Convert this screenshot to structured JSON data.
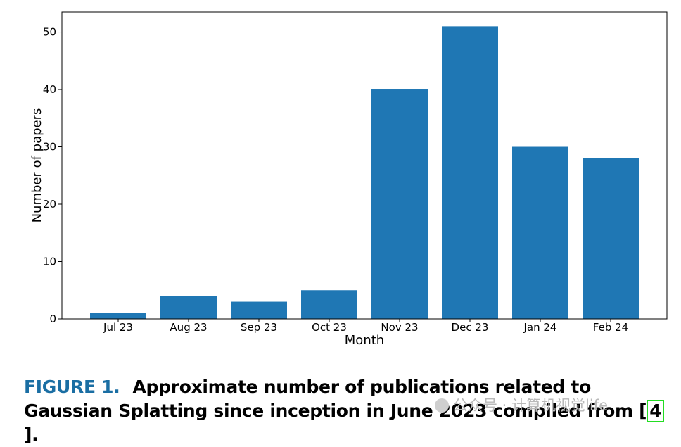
{
  "chart_data": {
    "type": "bar",
    "categories": [
      "Jul 23",
      "Aug 23",
      "Sep 23",
      "Oct 23",
      "Nov 23",
      "Dec 23",
      "Jan 24",
      "Feb 24"
    ],
    "values": [
      1,
      4,
      3,
      5,
      40,
      51,
      30,
      28
    ],
    "xlabel": "Month",
    "ylabel": "Number of papers",
    "ylim": [
      0,
      53.5
    ],
    "yticks": [
      0,
      10,
      20,
      30,
      40,
      50
    ],
    "grid": false,
    "bar_color": "#1f77b4"
  },
  "caption": {
    "figure_label": "FIGURE 1.",
    "text_before_ref": "Approximate number of publications related to Gaussian Splatting since inception in June 2023 compiled from [",
    "ref": "4",
    "text_after_ref": "]."
  },
  "watermark": {
    "text": "公众号 · 计算机视觉life",
    "icon": "wechat-icon"
  }
}
